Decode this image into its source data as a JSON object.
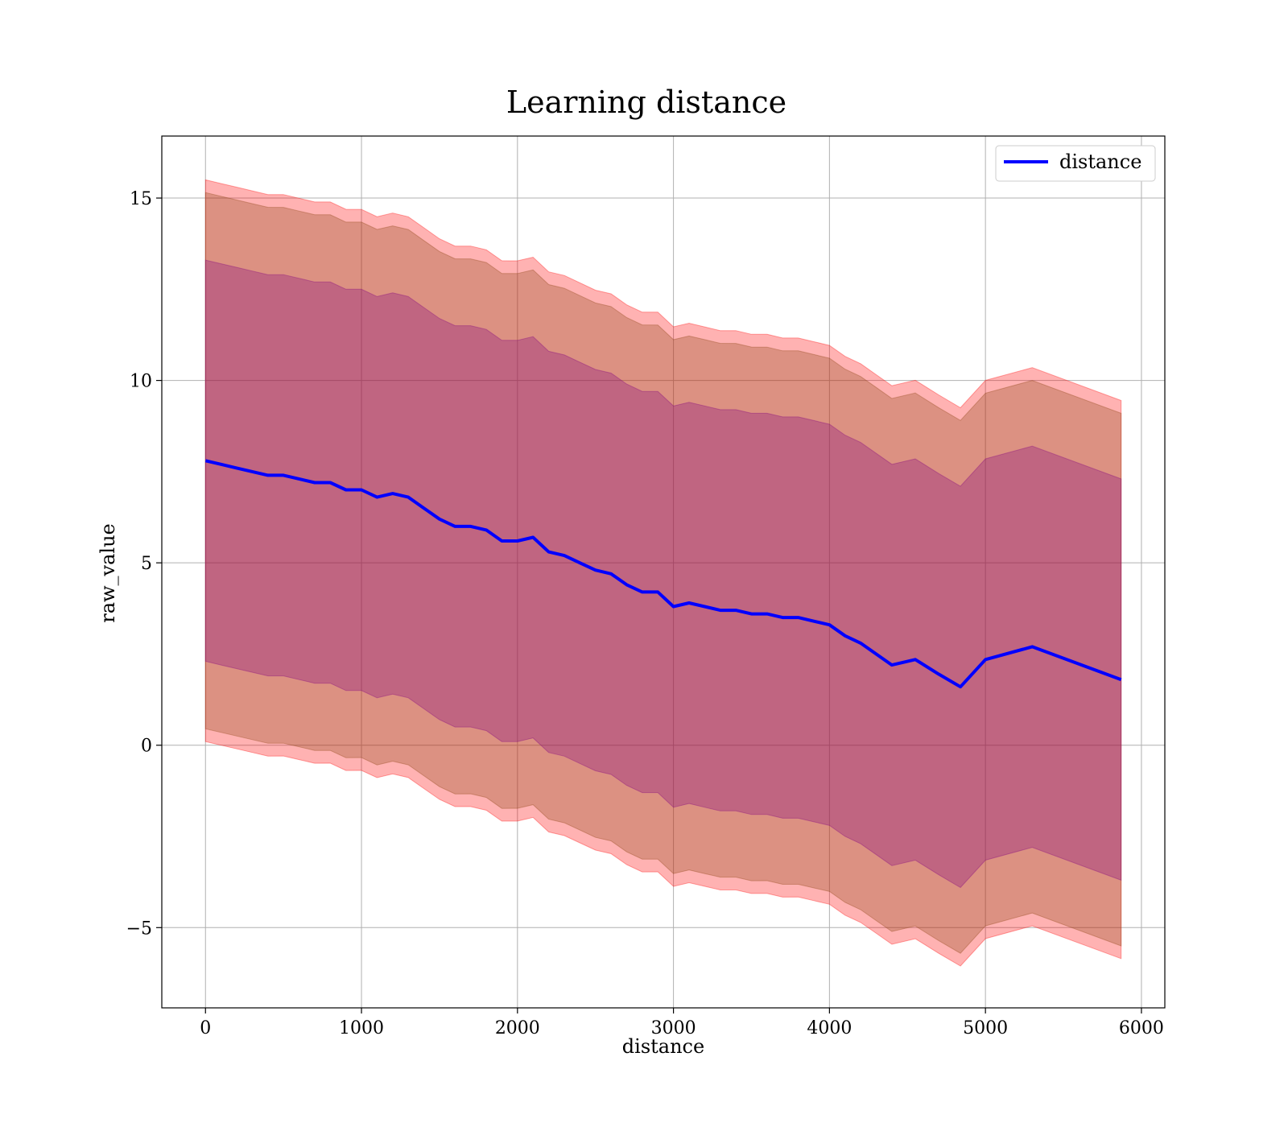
{
  "chart_data": {
    "type": "line",
    "title": "Learning distance",
    "xlabel": "distance",
    "ylabel": "raw_value",
    "xlim": [
      -280,
      6150
    ],
    "ylim": [
      -7.2,
      16.7
    ],
    "x_ticks": [
      0,
      1000,
      2000,
      3000,
      4000,
      5000,
      6000
    ],
    "x_tick_labels": [
      "0",
      "1000",
      "2000",
      "3000",
      "4000",
      "5000",
      "6000"
    ],
    "y_ticks": [
      -5,
      0,
      5,
      10,
      15
    ],
    "y_tick_labels": [
      "−5",
      "0",
      "5",
      "10",
      "15"
    ],
    "grid": true,
    "legend": {
      "placement": "top-right",
      "entries": [
        "distance"
      ]
    },
    "colors": {
      "line": "#0000ff",
      "outer_band": "#ff0000",
      "middle_band": "#8b4513",
      "inner_band": "#800080"
    },
    "series": [
      {
        "name": "distance",
        "x": [
          0,
          100,
          200,
          300,
          400,
          500,
          600,
          700,
          800,
          900,
          1000,
          1100,
          1200,
          1300,
          1400,
          1500,
          1600,
          1700,
          1800,
          1900,
          2000,
          2100,
          2200,
          2300,
          2400,
          2500,
          2600,
          2700,
          2800,
          2900,
          3000,
          3100,
          3200,
          3300,
          3400,
          3500,
          3600,
          3700,
          3800,
          3900,
          4000,
          4100,
          4200,
          4300,
          4400,
          4550,
          4700,
          4840,
          5000,
          5300,
          5870
        ],
        "y": [
          7.8,
          7.7,
          7.6,
          7.5,
          7.4,
          7.4,
          7.3,
          7.2,
          7.2,
          7.0,
          7.0,
          6.8,
          6.9,
          6.8,
          6.5,
          6.2,
          6.0,
          6.0,
          5.9,
          5.6,
          5.6,
          5.7,
          5.3,
          5.2,
          5.0,
          4.8,
          4.7,
          4.4,
          4.2,
          4.2,
          3.8,
          3.9,
          3.8,
          3.7,
          3.7,
          3.6,
          3.6,
          3.5,
          3.5,
          3.4,
          3.3,
          3.0,
          2.8,
          2.5,
          2.2,
          2.35,
          1.95,
          1.6,
          2.35,
          2.7,
          1.8
        ]
      }
    ],
    "bands": [
      {
        "half_width_start": 7.7,
        "half_width_end": 7.65
      },
      {
        "half_width_start": 7.35,
        "half_width_end": 7.3
      },
      {
        "half_width_start": 5.5,
        "half_width_end": 5.5
      }
    ]
  }
}
